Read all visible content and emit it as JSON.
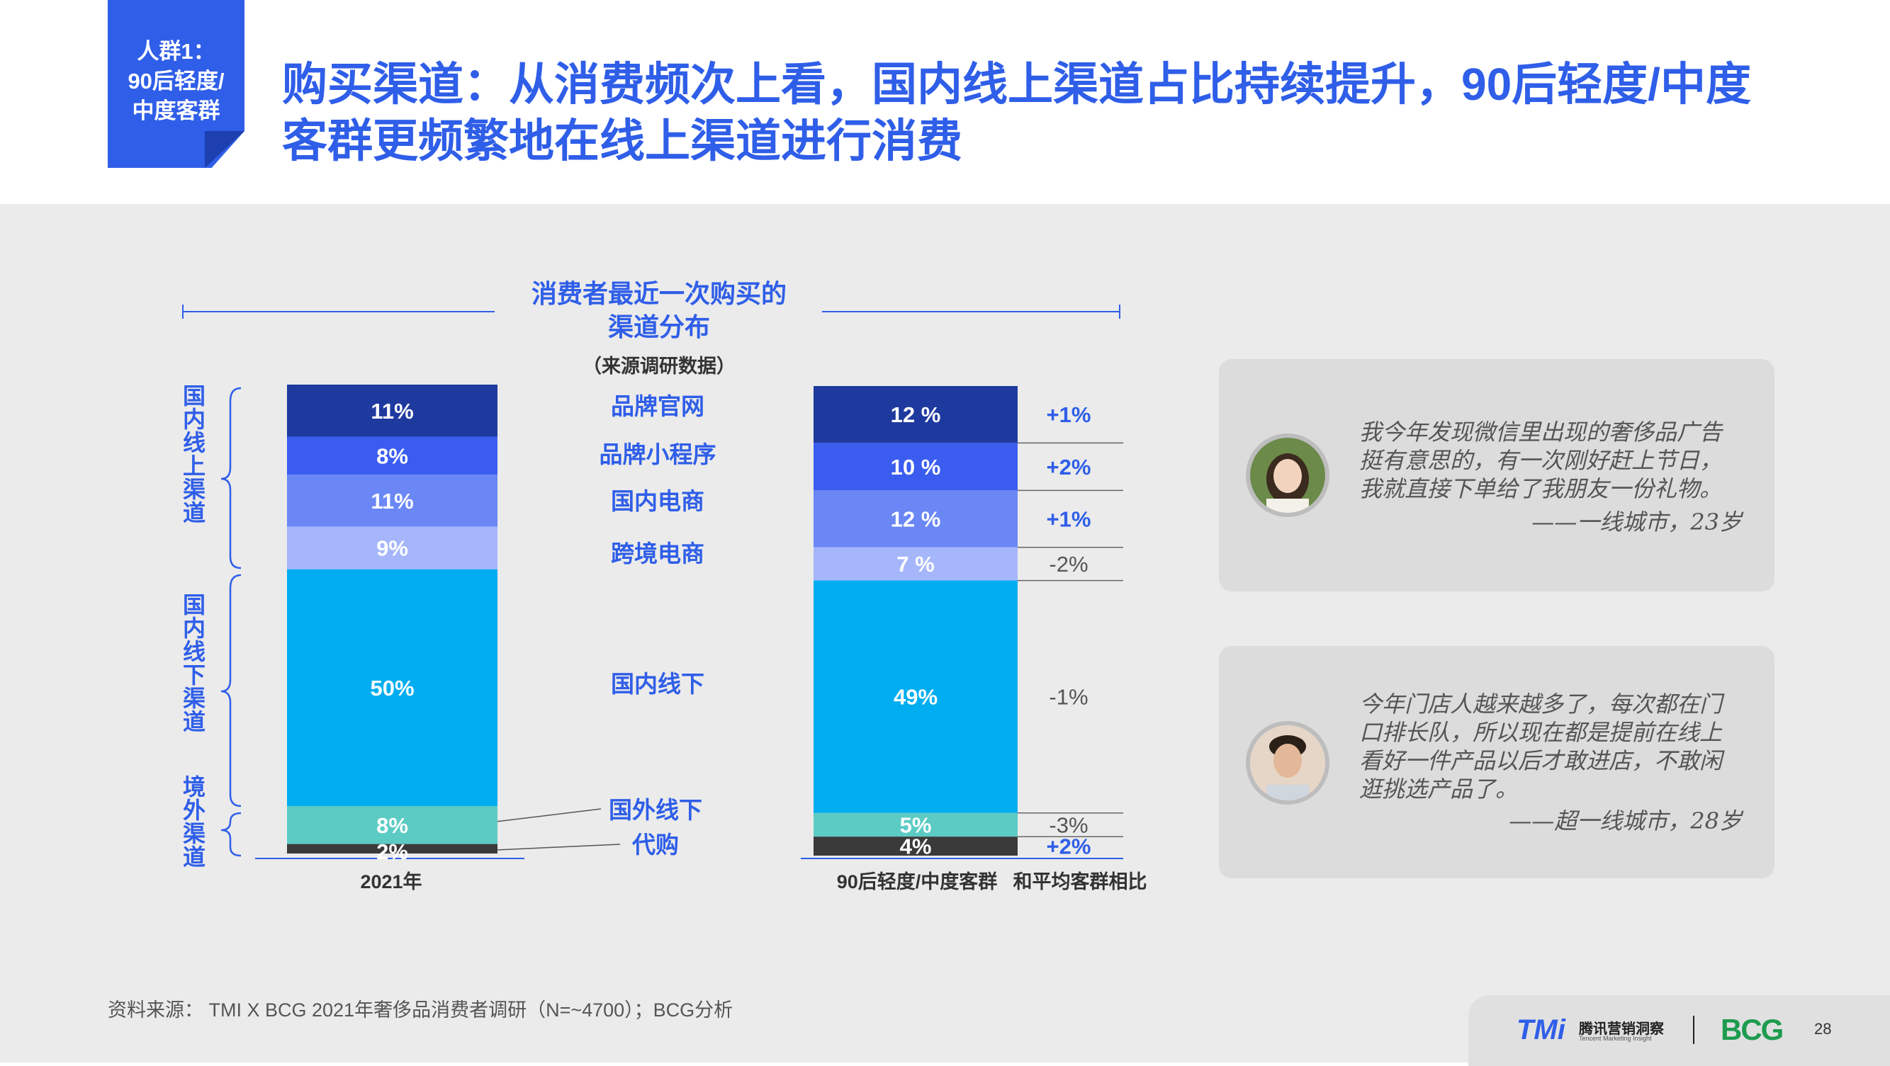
{
  "tag": {
    "lines": [
      "人群1：",
      "90后轻度/",
      "中度客群"
    ]
  },
  "title": {
    "line1": "购买渠道：从消费频次上看，国内线上渠道占比持续提升，90后轻度/中度",
    "line2": "客群更频繁地在线上渠道进行消费"
  },
  "chart_data": {
    "type": "bar",
    "stacked": true,
    "title_line1": "消费者最近一次购买的",
    "title_line2": "渠道分布",
    "source_note": "（来源调研数据）",
    "categories": [
      "2021年",
      "90后轻度/中度客群"
    ],
    "comparison_label": "和平均客群相比",
    "series": [
      {
        "name": "品牌官网",
        "values": [
          11,
          12
        ],
        "labels": [
          "11%",
          "12 %"
        ],
        "diff": "+1%",
        "color": "#1f3a9e"
      },
      {
        "name": "品牌小程序",
        "values": [
          8,
          10
        ],
        "labels": [
          "8%",
          "10 %"
        ],
        "diff": "+2%",
        "color": "#3a5df0"
      },
      {
        "name": "国内电商",
        "values": [
          11,
          12
        ],
        "labels": [
          "11%",
          "12 %"
        ],
        "diff": "+1%",
        "color": "#6a87f5"
      },
      {
        "name": "跨境电商",
        "values": [
          9,
          7
        ],
        "labels": [
          "9%",
          "7 %"
        ],
        "diff": "-2%",
        "color": "#a6b6fb"
      },
      {
        "name": "国内线下",
        "values": [
          50,
          49
        ],
        "labels": [
          "50%",
          "49%"
        ],
        "diff": "-1%",
        "color": "#00adf0"
      },
      {
        "name": "国外线下",
        "values": [
          8,
          5
        ],
        "labels": [
          "8%",
          "5%"
        ],
        "diff": "-3%",
        "color": "#5ccbc4"
      },
      {
        "name": "代购",
        "values": [
          2,
          4
        ],
        "labels": [
          "2%",
          "4%"
        ],
        "diff": "+2%",
        "color": "#3a3a3a"
      }
    ],
    "groups": [
      {
        "label": "国内线上渠道"
      },
      {
        "label": "国内线下渠道"
      },
      {
        "label": "境外渠道"
      }
    ]
  },
  "quotes": [
    {
      "text": [
        "我今年发现微信里出现的奢侈品广告",
        "挺有意思的，有一次刚好赶上节日，",
        "我就直接下单给了我朋友一份礼物。"
      ],
      "author": "——一线城市，23岁"
    },
    {
      "text": [
        "今年门店人越来越多了，每次都在门",
        "口排长队，所以现在都是提前在线上",
        "看好一件产品以后才敢进店，不敢闲",
        "逛挑选产品了。"
      ],
      "author": "——超一线城市，28岁"
    }
  ],
  "footnote": "资料来源： TMI X BCG 2021年奢侈品消费者调研（N=~4700）；BCG分析",
  "footer": {
    "tmi_logo": "TMi",
    "tmi_cn": "腾讯营销洞察",
    "tmi_en": "Tencent Marketing Insight",
    "bcg_logo": "BCG",
    "page": "28"
  },
  "colors": {
    "accent": "#2f5ee8",
    "panel": "#ebebeb"
  }
}
